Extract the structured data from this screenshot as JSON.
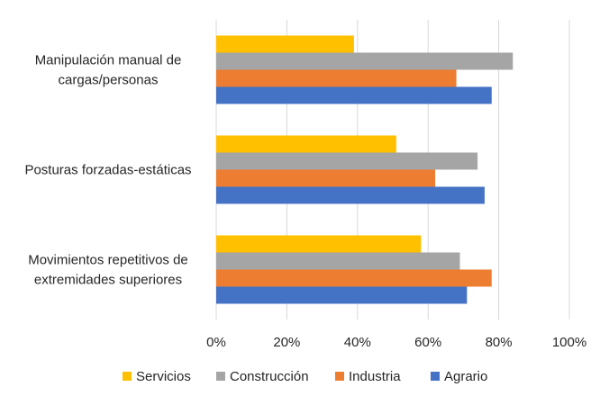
{
  "chart_data": {
    "type": "bar",
    "orientation": "horizontal",
    "categories": [
      [
        "Manipulación manual de",
        "cargas/personas"
      ],
      [
        "Posturas forzadas-estáticas"
      ],
      [
        "Movimientos repetitivos de",
        "extremidades superiores"
      ]
    ],
    "series": [
      {
        "name": "Servicios",
        "color": "#FFC000",
        "values": [
          39,
          51,
          58
        ]
      },
      {
        "name": "Construcción",
        "color": "#A5A5A5",
        "values": [
          84,
          74,
          69
        ]
      },
      {
        "name": "Industria",
        "color": "#ED7D31",
        "values": [
          68,
          62,
          78
        ]
      },
      {
        "name": "Agrario",
        "color": "#4472C4",
        "values": [
          78,
          76,
          71
        ]
      }
    ],
    "xlim": [
      0,
      100
    ],
    "xticks": [
      "0%",
      "20%",
      "40%",
      "60%",
      "80%",
      "100%"
    ],
    "grid": true,
    "legend_position": "bottom",
    "title": "",
    "xlabel": "",
    "ylabel": ""
  }
}
